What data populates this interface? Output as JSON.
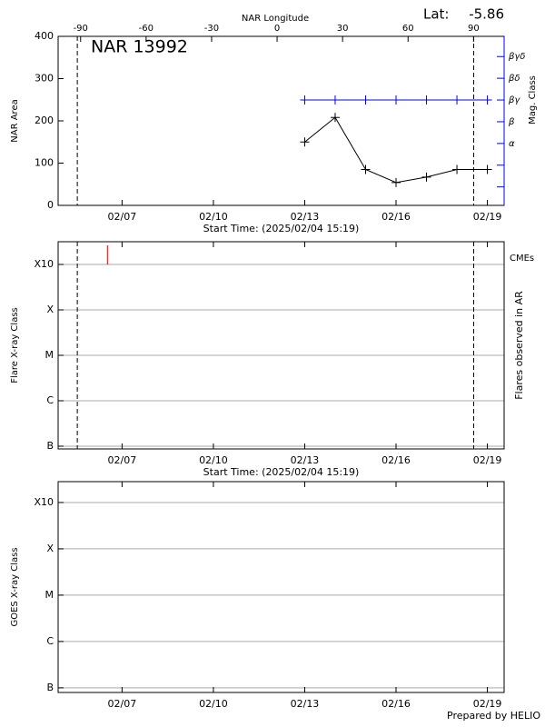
{
  "chart_data": [
    {
      "type": "line",
      "title": "NAR 13992",
      "lat_label": "Lat:",
      "lat": -5.86,
      "x2_label": "NAR Longitude",
      "x_label": "Start Time: (2025/02/04 15:19)",
      "y_label": "NAR Area",
      "y2_label": "Mag. Class",
      "y2_color": "#0000ff",
      "xlim": [
        4.9,
        19.55
      ],
      "xticks": [
        {
          "value": 7,
          "label": "02/07"
        },
        {
          "value": 10,
          "label": "02/10"
        },
        {
          "value": 13,
          "label": "02/13"
        },
        {
          "value": 16,
          "label": "02/16"
        },
        {
          "value": 19,
          "label": "02/19"
        }
      ],
      "x2lim": [
        -100.3,
        104
      ],
      "x2ticks": [
        -90,
        -60,
        -30,
        0,
        30,
        60,
        90
      ],
      "ylim": [
        0,
        400
      ],
      "yticks": [
        0,
        100,
        200,
        300,
        400
      ],
      "y2lim": [
        -0.85,
        6.93
      ],
      "y2ticks": [
        {
          "value": 2,
          "label": "α"
        },
        {
          "value": 3,
          "label": "β"
        },
        {
          "value": 4,
          "label": "βγ"
        },
        {
          "value": 5,
          "label": "βδ"
        },
        {
          "value": 6,
          "label": "βγδ"
        }
      ],
      "y2_minor_ticks": [
        0,
        1
      ],
      "x": [
        13,
        14,
        15,
        16,
        17,
        18,
        19
      ],
      "series": [
        {
          "color": "#000000",
          "values": [
            150,
            208,
            85,
            54,
            67,
            85,
            85
          ]
        },
        {
          "color": "#0000ff",
          "axis": "y2",
          "values": [
            4,
            4,
            4,
            4,
            4,
            4,
            4
          ]
        }
      ],
      "markers": [
        5.53,
        18.55
      ]
    },
    {
      "type": "event",
      "x_label": "Start Time: (2025/02/04 15:19)",
      "y_label": "Flare X-ray Class",
      "y2_label": "Flares observed in AR",
      "xlim": [
        4.9,
        19.55
      ],
      "xticks": [
        {
          "value": 7,
          "label": "02/07"
        },
        {
          "value": 10,
          "label": "02/10"
        },
        {
          "value": 13,
          "label": "02/13"
        },
        {
          "value": 16,
          "label": "02/16"
        },
        {
          "value": 19,
          "label": "02/19"
        }
      ],
      "ylim": [
        -0.06,
        4.5
      ],
      "yticks": [
        {
          "value": 0,
          "label": "B"
        },
        {
          "value": 1,
          "label": "C"
        },
        {
          "value": 2,
          "label": "M"
        },
        {
          "value": 3,
          "label": "X"
        },
        {
          "value": 4,
          "label": "X10"
        }
      ],
      "grid": true,
      "events": {
        "name": "CMEs",
        "color": "#e00000",
        "x": [
          6.52
        ]
      },
      "markers": [
        5.53,
        18.55
      ]
    },
    {
      "type": "line",
      "y_label": "GOES X-ray Class",
      "xlim": [
        4.9,
        19.55
      ],
      "xticks": [
        {
          "value": 7,
          "label": "02/07"
        },
        {
          "value": 10,
          "label": "02/10"
        },
        {
          "value": 13,
          "label": "02/13"
        },
        {
          "value": 16,
          "label": "02/16"
        },
        {
          "value": 19,
          "label": "02/19"
        }
      ],
      "ylim": [
        -0.1,
        4.45
      ],
      "yticks": [
        {
          "value": 0,
          "label": "B"
        },
        {
          "value": 1,
          "label": "C"
        },
        {
          "value": 2,
          "label": "M"
        },
        {
          "value": 3,
          "label": "X"
        },
        {
          "value": 4,
          "label": "X10"
        }
      ],
      "grid": true,
      "series": []
    }
  ],
  "footer": "Prepared by HELIO"
}
